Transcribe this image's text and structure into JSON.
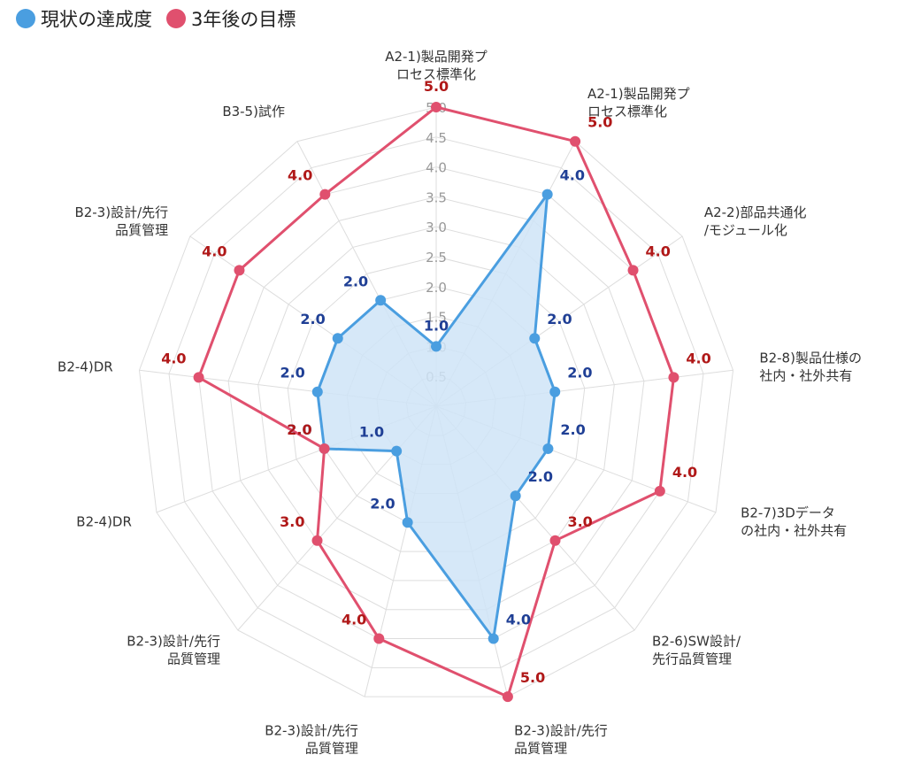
{
  "colors": {
    "current": "#4a9ee0",
    "current_fill": "#cfe4f7",
    "target": "#e0506e",
    "current_label": "#1f3f95",
    "target_label": "#b01818",
    "grid": "#dddddd",
    "tick": "#999999"
  },
  "chart_data": {
    "type": "radar",
    "title": "",
    "legend_position": "top-left",
    "rlim": [
      0,
      5
    ],
    "ticks": [
      "0.5",
      "1.0",
      "1.5",
      "2.0",
      "2.5",
      "3.0",
      "3.5",
      "4.0",
      "4.5",
      "5.0"
    ],
    "tick_values": [
      0.5,
      1.0,
      1.5,
      2.0,
      2.5,
      3.0,
      3.5,
      4.0,
      4.5,
      5.0
    ],
    "categories": [
      [
        "A2-1)製品開発プ",
        "ロセス標準化"
      ],
      [
        "A2-1)製品開発プ",
        "ロセス標準化"
      ],
      [
        "A2-2)部品共通化",
        "/モジュール化"
      ],
      [
        "B2-8)製品仕様の",
        "社内・社外共有"
      ],
      [
        "B2-7)3Dデータ",
        "の社内・社外共有"
      ],
      [
        "B2-6)SW設計/",
        "先行品質管理"
      ],
      [
        "B2-3)設計/先行",
        "品質管理"
      ],
      [
        "B2-3)設計/先行",
        "品質管理"
      ],
      [
        "B2-3)設計/先行",
        "品質管理"
      ],
      [
        "B2-4)DR"
      ],
      [
        "B2-4)DR"
      ],
      [
        "B2-3)設計/先行",
        "品質管理"
      ],
      [
        "B3-5)試作"
      ]
    ],
    "series": [
      {
        "name": "現状の達成度",
        "values": [
          1.0,
          4.0,
          2.0,
          2.0,
          2.0,
          2.0,
          4.0,
          2.0,
          1.0,
          2.0,
          2.0,
          2.0,
          2.0
        ],
        "labels": [
          "1.0",
          "4.0",
          "2.0",
          "2.0",
          "2.0",
          "2.0",
          "4.0",
          "2.0",
          "1.0",
          "2.0",
          "2.0",
          "2.0",
          "2.0"
        ]
      },
      {
        "name": "3年後の目標",
        "values": [
          5.0,
          5.0,
          4.0,
          4.0,
          4.0,
          3.0,
          5.0,
          4.0,
          3.0,
          2.0,
          4.0,
          4.0,
          4.0
        ],
        "labels": [
          "5.0",
          "5.0",
          "4.0",
          "4.0",
          "4.0",
          "3.0",
          "5.0",
          "4.0",
          "3.0",
          "2.0",
          "4.0",
          "4.0",
          "4.0"
        ]
      }
    ]
  }
}
